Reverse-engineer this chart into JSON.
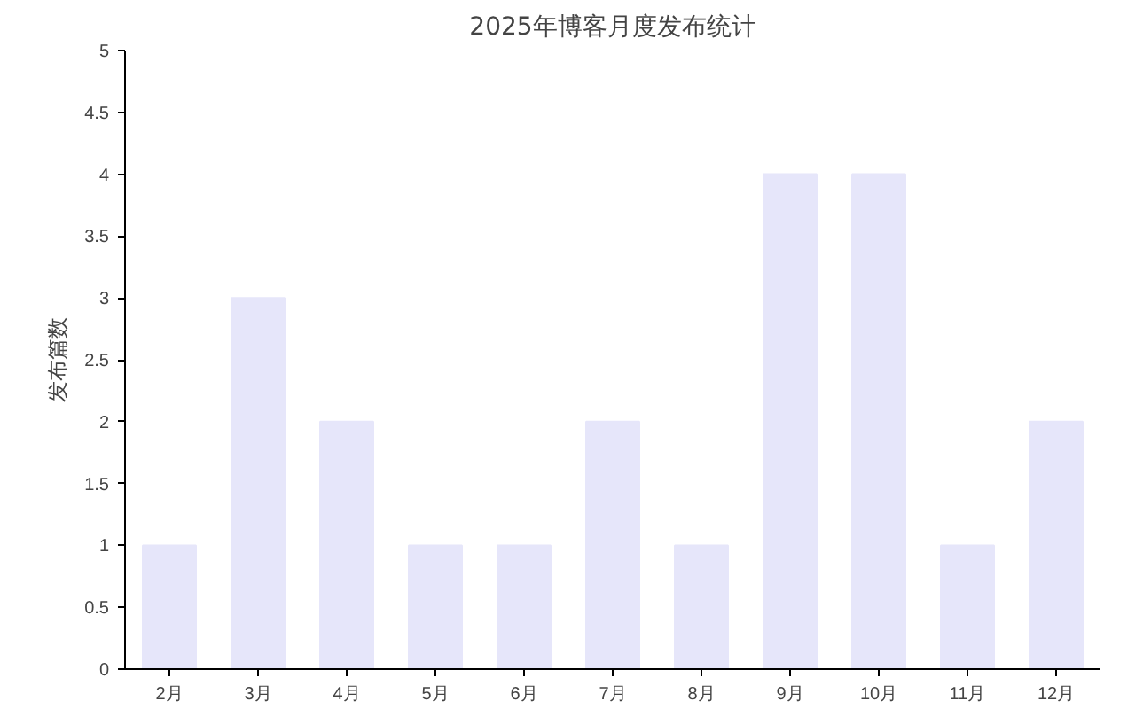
{
  "chart_data": {
    "type": "bar",
    "title": "2025年博客月度发布统计",
    "ylabel": "发布篇数",
    "categories": [
      "2月",
      "3月",
      "4月",
      "5月",
      "6月",
      "7月",
      "8月",
      "9月",
      "10月",
      "11月",
      "12月"
    ],
    "values": [
      1,
      3,
      2,
      1,
      1,
      2,
      1,
      4,
      4,
      1,
      2
    ],
    "color": "#e6e6fa",
    "ylim": [
      0,
      5
    ],
    "yticks": [
      0,
      0.5,
      1,
      1.5,
      2,
      2.5,
      3,
      3.5,
      4,
      4.5,
      5
    ],
    "grid": false
  }
}
